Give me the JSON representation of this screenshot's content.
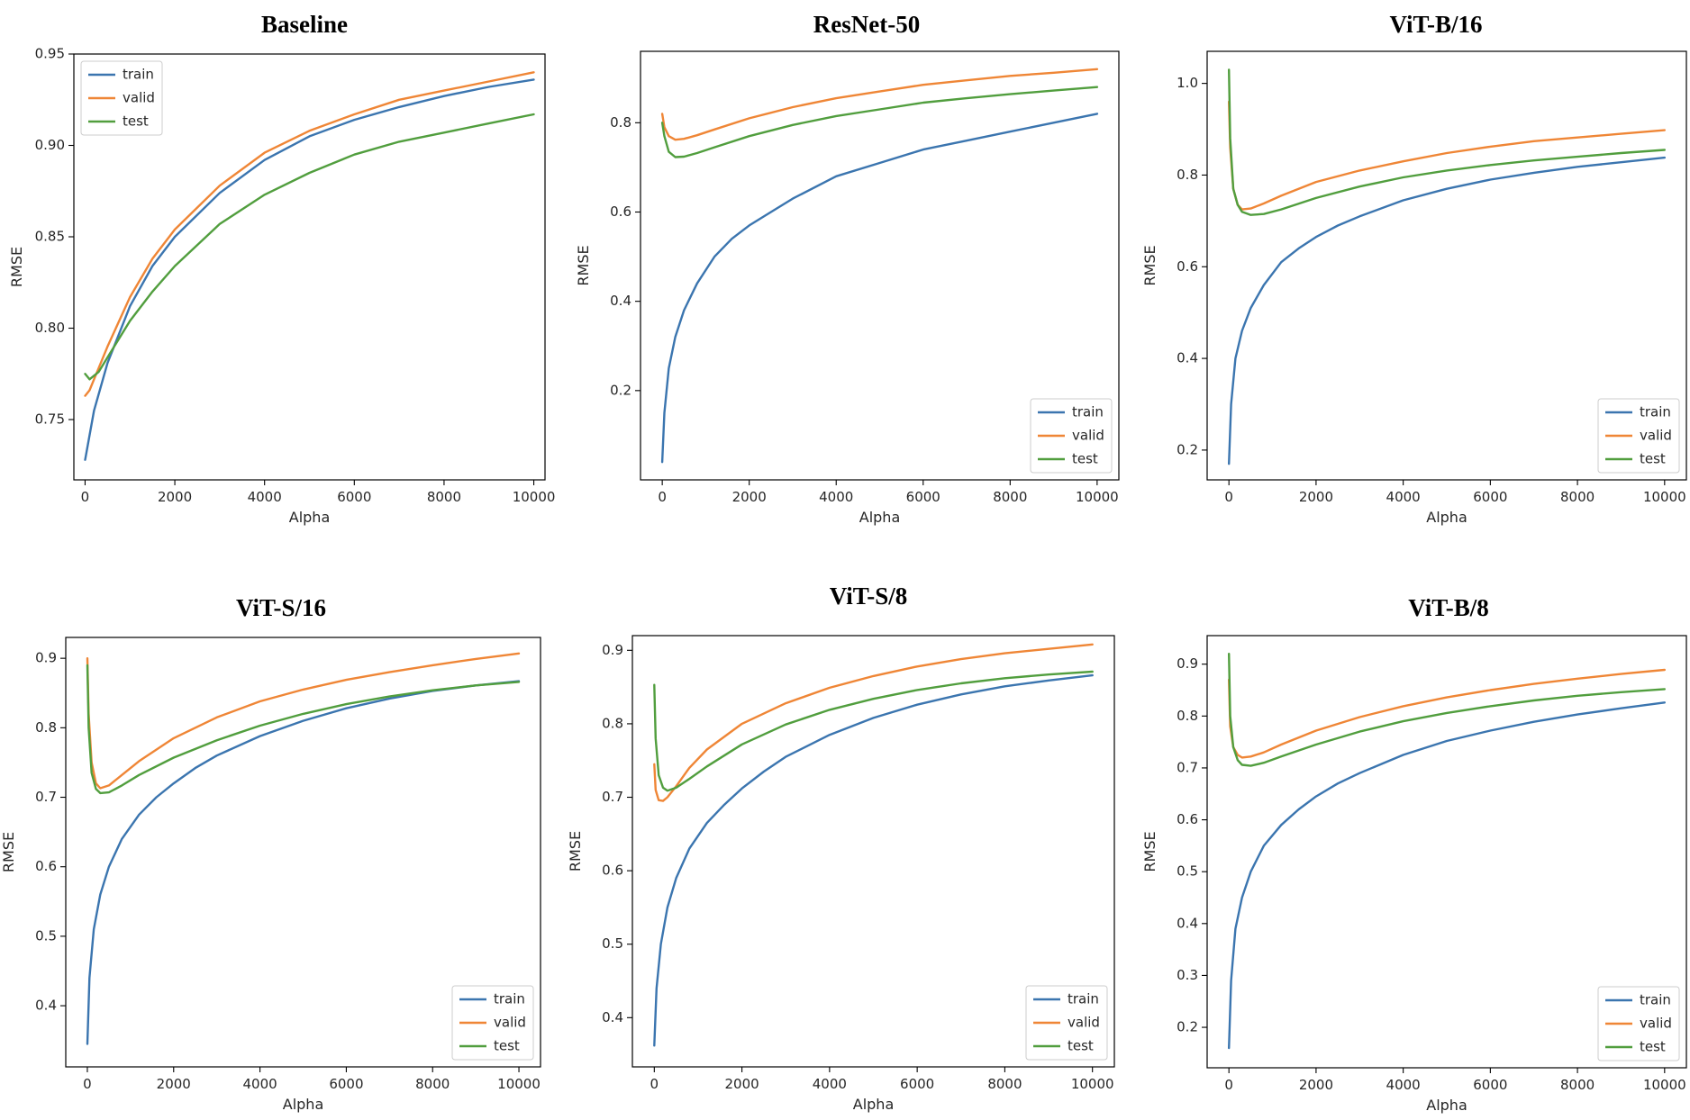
{
  "figure": {
    "description_free": true
  },
  "chart_data": [
    {
      "type": "line",
      "title": "Baseline",
      "xlabel": "Alpha",
      "ylabel": "RMSE",
      "xlim": [
        -250,
        10250
      ],
      "ylim": [
        0.717,
        0.95
      ],
      "xticks": [
        0,
        2000,
        4000,
        6000,
        8000,
        10000
      ],
      "xtick_labels": [
        "0",
        "2000",
        "4000",
        "6000",
        "8000",
        "10000"
      ],
      "yticks": [
        0.75,
        0.8,
        0.85,
        0.9,
        0.95
      ],
      "ytick_labels": [
        "0.75",
        "0.80",
        "0.85",
        "0.90",
        "0.95"
      ],
      "legend_loc": "upper-left",
      "series": [
        {
          "name": "train",
          "color": "#3b75af",
          "x": [
            0,
            200,
            500,
            1000,
            1500,
            2000,
            3000,
            4000,
            5000,
            6000,
            7000,
            8000,
            9000,
            10000
          ],
          "y": [
            0.728,
            0.755,
            0.781,
            0.812,
            0.834,
            0.85,
            0.874,
            0.892,
            0.905,
            0.914,
            0.921,
            0.927,
            0.932,
            0.936
          ]
        },
        {
          "name": "valid",
          "color": "#ef8636",
          "x": [
            0,
            100,
            200,
            500,
            1000,
            1500,
            2000,
            3000,
            4000,
            5000,
            6000,
            7000,
            8000,
            9000,
            10000
          ],
          "y": [
            0.763,
            0.766,
            0.772,
            0.79,
            0.817,
            0.838,
            0.854,
            0.878,
            0.896,
            0.908,
            0.917,
            0.925,
            0.93,
            0.935,
            0.94
          ]
        },
        {
          "name": "test",
          "color": "#519e3e",
          "x": [
            0,
            100,
            300,
            600,
            1000,
            1500,
            2000,
            3000,
            4000,
            5000,
            6000,
            7000,
            8000,
            9000,
            10000
          ],
          "y": [
            0.775,
            0.772,
            0.776,
            0.788,
            0.804,
            0.82,
            0.834,
            0.857,
            0.873,
            0.885,
            0.895,
            0.902,
            0.907,
            0.912,
            0.917
          ]
        }
      ]
    },
    {
      "type": "line",
      "title": "ResNet-50",
      "xlabel": "Alpha",
      "ylabel": "RMSE",
      "xlim": [
        -500,
        10500
      ],
      "ylim": [
        0.0,
        0.96
      ],
      "xticks": [
        0,
        2000,
        4000,
        6000,
        8000,
        10000
      ],
      "xtick_labels": [
        "0",
        "2000",
        "4000",
        "6000",
        "8000",
        "10000"
      ],
      "yticks": [
        0.2,
        0.4,
        0.6,
        0.8
      ],
      "ytick_labels": [
        "0.2",
        "0.4",
        "0.6",
        "0.8"
      ],
      "legend_loc": "lower-right",
      "series": [
        {
          "name": "train",
          "color": "#3b75af",
          "x": [
            0,
            50,
            150,
            300,
            500,
            800,
            1200,
            1600,
            2000,
            2500,
            3000,
            4000,
            5000,
            6000,
            7000,
            8000,
            9000,
            10000
          ],
          "y": [
            0.04,
            0.15,
            0.25,
            0.32,
            0.38,
            0.44,
            0.5,
            0.54,
            0.57,
            0.6,
            0.63,
            0.68,
            0.71,
            0.74,
            0.76,
            0.78,
            0.8,
            0.82
          ]
        },
        {
          "name": "valid",
          "color": "#ef8636",
          "x": [
            0,
            50,
            150,
            300,
            500,
            800,
            1200,
            2000,
            3000,
            4000,
            5000,
            6000,
            7000,
            8000,
            9000,
            10000
          ],
          "y": [
            0.82,
            0.79,
            0.77,
            0.762,
            0.764,
            0.772,
            0.785,
            0.81,
            0.835,
            0.855,
            0.87,
            0.885,
            0.895,
            0.905,
            0.912,
            0.92
          ]
        },
        {
          "name": "test",
          "color": "#519e3e",
          "x": [
            0,
            50,
            150,
            300,
            500,
            800,
            1200,
            2000,
            3000,
            4000,
            5000,
            6000,
            7000,
            8000,
            9000,
            10000
          ],
          "y": [
            0.8,
            0.77,
            0.735,
            0.723,
            0.724,
            0.732,
            0.745,
            0.77,
            0.795,
            0.815,
            0.83,
            0.845,
            0.855,
            0.864,
            0.872,
            0.88
          ]
        }
      ]
    },
    {
      "type": "line",
      "title": "ViT-B/16",
      "xlabel": "Alpha",
      "ylabel": "RMSE",
      "xlim": [
        -500,
        10500
      ],
      "ylim": [
        0.135,
        1.07
      ],
      "xticks": [
        0,
        2000,
        4000,
        6000,
        8000,
        10000
      ],
      "xtick_labels": [
        "0",
        "2000",
        "4000",
        "6000",
        "8000",
        "10000"
      ],
      "yticks": [
        0.2,
        0.4,
        0.6,
        0.8,
        1.0
      ],
      "ytick_labels": [
        "0.2",
        "0.4",
        "0.6",
        "0.8",
        "1.0"
      ],
      "legend_loc": "lower-right",
      "series": [
        {
          "name": "train",
          "color": "#3b75af",
          "x": [
            0,
            50,
            150,
            300,
            500,
            800,
            1200,
            1600,
            2000,
            2500,
            3000,
            4000,
            5000,
            6000,
            7000,
            8000,
            9000,
            10000
          ],
          "y": [
            0.17,
            0.3,
            0.4,
            0.46,
            0.51,
            0.56,
            0.61,
            0.64,
            0.665,
            0.69,
            0.71,
            0.745,
            0.77,
            0.79,
            0.805,
            0.818,
            0.828,
            0.838
          ]
        },
        {
          "name": "valid",
          "color": "#ef8636",
          "x": [
            0,
            30,
            100,
            200,
            300,
            500,
            800,
            1200,
            2000,
            3000,
            4000,
            5000,
            6000,
            7000,
            8000,
            9000,
            10000
          ],
          "y": [
            0.96,
            0.86,
            0.77,
            0.735,
            0.725,
            0.727,
            0.738,
            0.755,
            0.785,
            0.81,
            0.83,
            0.848,
            0.862,
            0.874,
            0.882,
            0.89,
            0.898
          ]
        },
        {
          "name": "test",
          "color": "#519e3e",
          "x": [
            0,
            30,
            100,
            200,
            300,
            500,
            800,
            1200,
            2000,
            3000,
            4000,
            5000,
            6000,
            7000,
            8000,
            9000,
            10000
          ],
          "y": [
            1.03,
            0.88,
            0.77,
            0.735,
            0.72,
            0.713,
            0.715,
            0.725,
            0.75,
            0.775,
            0.795,
            0.81,
            0.822,
            0.832,
            0.84,
            0.848,
            0.855
          ]
        }
      ]
    },
    {
      "type": "line",
      "title": "ViT-S/16",
      "xlabel": "Alpha",
      "ylabel": "RMSE",
      "xlim": [
        -500,
        10500
      ],
      "ylim": [
        0.312,
        0.93
      ],
      "xticks": [
        0,
        2000,
        4000,
        6000,
        8000,
        10000
      ],
      "xtick_labels": [
        "0",
        "2000",
        "4000",
        "6000",
        "8000",
        "10000"
      ],
      "yticks": [
        0.4,
        0.5,
        0.6,
        0.7,
        0.8,
        0.9
      ],
      "ytick_labels": [
        "0.4",
        "0.5",
        "0.6",
        "0.7",
        "0.8",
        "0.9"
      ],
      "legend_loc": "lower-right",
      "series": [
        {
          "name": "train",
          "color": "#3b75af",
          "x": [
            0,
            50,
            150,
            300,
            500,
            800,
            1200,
            1600,
            2000,
            2500,
            3000,
            4000,
            5000,
            6000,
            7000,
            8000,
            9000,
            10000
          ],
          "y": [
            0.345,
            0.44,
            0.51,
            0.56,
            0.6,
            0.64,
            0.675,
            0.7,
            0.72,
            0.742,
            0.76,
            0.788,
            0.81,
            0.828,
            0.842,
            0.853,
            0.861,
            0.867
          ]
        },
        {
          "name": "valid",
          "color": "#ef8636",
          "x": [
            0,
            30,
            100,
            200,
            300,
            500,
            800,
            1200,
            2000,
            3000,
            4000,
            5000,
            6000,
            7000,
            8000,
            9000,
            10000
          ],
          "y": [
            0.9,
            0.82,
            0.75,
            0.72,
            0.713,
            0.717,
            0.732,
            0.752,
            0.785,
            0.815,
            0.838,
            0.855,
            0.869,
            0.88,
            0.89,
            0.899,
            0.907
          ]
        },
        {
          "name": "test",
          "color": "#519e3e",
          "x": [
            0,
            30,
            100,
            200,
            300,
            500,
            800,
            1200,
            2000,
            3000,
            4000,
            5000,
            6000,
            7000,
            8000,
            9000,
            10000
          ],
          "y": [
            0.89,
            0.8,
            0.735,
            0.712,
            0.706,
            0.707,
            0.717,
            0.732,
            0.757,
            0.782,
            0.803,
            0.82,
            0.834,
            0.845,
            0.854,
            0.861,
            0.866
          ]
        }
      ]
    },
    {
      "type": "line",
      "title": "ViT-S/8",
      "xlabel": "Alpha",
      "ylabel": "RMSE",
      "xlim": [
        -500,
        10500
      ],
      "ylim": [
        0.333,
        0.92
      ],
      "xticks": [
        0,
        2000,
        4000,
        6000,
        8000,
        10000
      ],
      "xtick_labels": [
        "0",
        "2000",
        "4000",
        "6000",
        "8000",
        "10000"
      ],
      "yticks": [
        0.4,
        0.5,
        0.6,
        0.7,
        0.8,
        0.9
      ],
      "ytick_labels": [
        "0.4",
        "0.5",
        "0.6",
        "0.7",
        "0.8",
        "0.9"
      ],
      "legend_loc": "lower-right",
      "series": [
        {
          "name": "train",
          "color": "#3b75af",
          "x": [
            0,
            50,
            150,
            300,
            500,
            800,
            1200,
            1600,
            2000,
            2500,
            3000,
            4000,
            5000,
            6000,
            7000,
            8000,
            9000,
            10000
          ],
          "y": [
            0.362,
            0.44,
            0.5,
            0.55,
            0.59,
            0.63,
            0.665,
            0.69,
            0.712,
            0.735,
            0.755,
            0.785,
            0.808,
            0.826,
            0.84,
            0.851,
            0.859,
            0.866
          ]
        },
        {
          "name": "valid",
          "color": "#ef8636",
          "x": [
            0,
            30,
            100,
            200,
            300,
            500,
            800,
            1200,
            2000,
            3000,
            4000,
            5000,
            6000,
            7000,
            8000,
            9000,
            10000
          ],
          "y": [
            0.745,
            0.71,
            0.696,
            0.695,
            0.7,
            0.715,
            0.74,
            0.765,
            0.8,
            0.828,
            0.849,
            0.865,
            0.878,
            0.888,
            0.896,
            0.902,
            0.908
          ]
        },
        {
          "name": "test",
          "color": "#519e3e",
          "x": [
            0,
            30,
            100,
            200,
            300,
            500,
            800,
            1200,
            2000,
            3000,
            4000,
            5000,
            6000,
            7000,
            8000,
            9000,
            10000
          ],
          "y": [
            0.853,
            0.78,
            0.73,
            0.713,
            0.709,
            0.713,
            0.725,
            0.742,
            0.772,
            0.799,
            0.819,
            0.834,
            0.846,
            0.855,
            0.862,
            0.867,
            0.871
          ]
        }
      ]
    },
    {
      "type": "line",
      "title": "ViT-B/8",
      "xlabel": "Alpha",
      "ylabel": "RMSE",
      "xlim": [
        -500,
        10500
      ],
      "ylim": [
        0.122,
        0.955
      ],
      "xticks": [
        0,
        2000,
        4000,
        6000,
        8000,
        10000
      ],
      "xtick_labels": [
        "0",
        "2000",
        "4000",
        "6000",
        "8000",
        "10000"
      ],
      "yticks": [
        0.2,
        0.3,
        0.4,
        0.5,
        0.6,
        0.7,
        0.8,
        0.9
      ],
      "ytick_labels": [
        "0.2",
        "0.3",
        "0.4",
        "0.5",
        "0.6",
        "0.7",
        "0.8",
        "0.9"
      ],
      "legend_loc": "lower-right",
      "series": [
        {
          "name": "train",
          "color": "#3b75af",
          "x": [
            0,
            50,
            150,
            300,
            500,
            800,
            1200,
            1600,
            2000,
            2500,
            3000,
            4000,
            5000,
            6000,
            7000,
            8000,
            9000,
            10000
          ],
          "y": [
            0.16,
            0.29,
            0.39,
            0.45,
            0.5,
            0.55,
            0.59,
            0.62,
            0.645,
            0.67,
            0.69,
            0.725,
            0.752,
            0.772,
            0.789,
            0.803,
            0.815,
            0.826
          ]
        },
        {
          "name": "valid",
          "color": "#ef8636",
          "x": [
            0,
            30,
            100,
            200,
            300,
            500,
            800,
            1200,
            2000,
            3000,
            4000,
            5000,
            6000,
            7000,
            8000,
            9000,
            10000
          ],
          "y": [
            0.87,
            0.78,
            0.74,
            0.725,
            0.72,
            0.722,
            0.73,
            0.745,
            0.772,
            0.798,
            0.819,
            0.836,
            0.85,
            0.862,
            0.872,
            0.881,
            0.889
          ]
        },
        {
          "name": "test",
          "color": "#519e3e",
          "x": [
            0,
            30,
            100,
            200,
            300,
            500,
            800,
            1200,
            2000,
            3000,
            4000,
            5000,
            6000,
            7000,
            8000,
            9000,
            10000
          ],
          "y": [
            0.92,
            0.8,
            0.74,
            0.715,
            0.706,
            0.704,
            0.71,
            0.722,
            0.745,
            0.77,
            0.79,
            0.806,
            0.819,
            0.83,
            0.839,
            0.846,
            0.852
          ]
        }
      ]
    }
  ]
}
